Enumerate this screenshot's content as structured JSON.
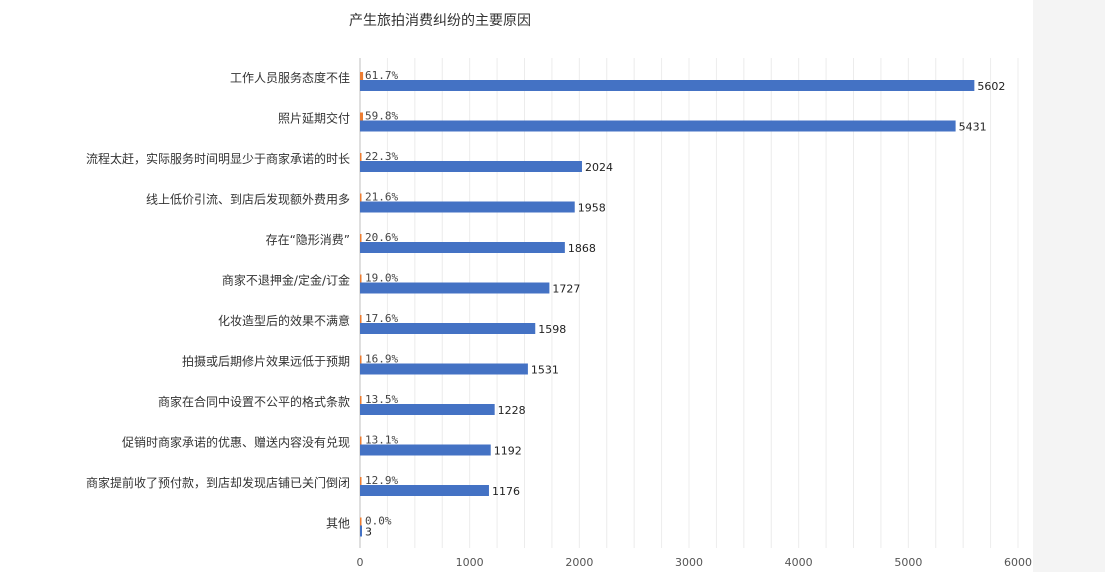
{
  "chart_data": {
    "type": "bar",
    "orientation": "horizontal",
    "title": "产生旅拍消费纠纷的主要原因",
    "categories": [
      "工作人员服务态度不佳",
      "照片延期交付",
      "流程太赶，实际服务时间明显少于商家承诺的时长",
      "线上低价引流、到店后发现额外费用多",
      "存在“隐形消费”",
      "商家不退押金/定金/订金",
      "化妆造型后的效果不满意",
      "拍摄或后期修片效果远低于预期",
      "商家在合同中设置不公平的格式条款",
      "促销时商家承诺的优惠、赠送内容没有兑现",
      "商家提前收了预付款，到店却发现店铺已关门倒闭",
      "其他"
    ],
    "series": [
      {
        "values": [
          5602,
          5431,
          2024,
          1958,
          1868,
          1727,
          1598,
          1531,
          1228,
          1192,
          1176,
          3
        ],
        "value_labels": [
          "5602",
          "5431",
          "2024",
          "1958",
          "1868",
          "1727",
          "1598",
          "1531",
          "1228",
          "1192",
          "1176",
          "3"
        ],
        "color": "#4472c4"
      },
      {
        "values": [
          61.7,
          59.8,
          22.3,
          21.6,
          20.6,
          19.0,
          17.6,
          16.9,
          13.5,
          13.1,
          12.9,
          0.0
        ],
        "value_labels": [
          "61.7%",
          "59.8%",
          "22.3%",
          "21.6%",
          "20.6%",
          "19.0%",
          "17.6%",
          "16.9%",
          "13.5%",
          "13.1%",
          "12.9%",
          "0.0%"
        ],
        "color": "#ed7d31"
      }
    ],
    "xlim": [
      0,
      6000
    ],
    "x_ticks": [
      "0",
      "1000",
      "2000",
      "3000",
      "4000",
      "5000",
      "6000"
    ],
    "grid": true,
    "legend": "none"
  }
}
